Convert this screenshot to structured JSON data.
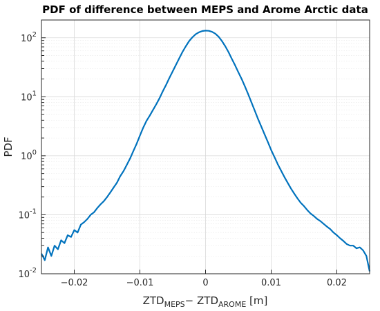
{
  "chart_data": {
    "type": "line",
    "title": "PDF of difference between MEPS and Arome Arctic data",
    "ylabel": "PDF",
    "xlabel": {
      "prefix": "ZTD",
      "sub1": "MEPS",
      "minus": "− ZTD",
      "sub2": "AROME",
      "unit": " [m]"
    },
    "xlim": [
      -0.025,
      0.025
    ],
    "ylim": [
      0.01,
      200
    ],
    "yscale": "log",
    "grid": true,
    "minor_grid": true,
    "x_ticks": [
      {
        "value": -0.02,
        "label": "−0.02"
      },
      {
        "value": -0.01,
        "label": "−0.01"
      },
      {
        "value": 0,
        "label": "0"
      },
      {
        "value": 0.01,
        "label": "0.01"
      },
      {
        "value": 0.02,
        "label": "0.02"
      }
    ],
    "y_ticks": [
      {
        "value": 0.01,
        "base": "10",
        "exp": "-2"
      },
      {
        "value": 0.1,
        "base": "10",
        "exp": "-1"
      },
      {
        "value": 1,
        "base": "10",
        "exp": "0"
      },
      {
        "value": 10,
        "base": "10",
        "exp": "1"
      },
      {
        "value": 100,
        "base": "10",
        "exp": "2"
      }
    ],
    "series": [
      {
        "color": "#0072bd",
        "x": [
          -0.025,
          -0.0245,
          -0.024,
          -0.0235,
          -0.023,
          -0.0225,
          -0.022,
          -0.0215,
          -0.021,
          -0.0205,
          -0.02,
          -0.0195,
          -0.019,
          -0.0185,
          -0.018,
          -0.0175,
          -0.017,
          -0.0165,
          -0.016,
          -0.0155,
          -0.015,
          -0.0145,
          -0.014,
          -0.0135,
          -0.013,
          -0.0125,
          -0.012,
          -0.0115,
          -0.011,
          -0.0105,
          -0.01,
          -0.0095,
          -0.009,
          -0.0085,
          -0.008,
          -0.0075,
          -0.007,
          -0.0065,
          -0.006,
          -0.0055,
          -0.005,
          -0.0045,
          -0.004,
          -0.0035,
          -0.003,
          -0.0025,
          -0.002,
          -0.0015,
          -0.001,
          -0.0005,
          0.0,
          0.0005,
          0.001,
          0.0015,
          0.002,
          0.0025,
          0.003,
          0.0035,
          0.004,
          0.0045,
          0.005,
          0.0055,
          0.006,
          0.0065,
          0.007,
          0.0075,
          0.008,
          0.0085,
          0.009,
          0.0095,
          0.01,
          0.0105,
          0.011,
          0.0115,
          0.012,
          0.0125,
          0.013,
          0.0135,
          0.014,
          0.0145,
          0.015,
          0.0155,
          0.016,
          0.0165,
          0.017,
          0.0175,
          0.018,
          0.0185,
          0.019,
          0.0195,
          0.02,
          0.0205,
          0.021,
          0.0215,
          0.022,
          0.0225,
          0.023,
          0.0235,
          0.024,
          0.0245,
          0.025
        ],
        "y": [
          0.022,
          0.017,
          0.028,
          0.02,
          0.03,
          0.026,
          0.037,
          0.033,
          0.045,
          0.042,
          0.055,
          0.05,
          0.068,
          0.075,
          0.085,
          0.1,
          0.11,
          0.13,
          0.15,
          0.17,
          0.2,
          0.24,
          0.29,
          0.35,
          0.45,
          0.55,
          0.7,
          0.9,
          1.2,
          1.6,
          2.2,
          3.0,
          3.9,
          4.8,
          6.0,
          7.5,
          9.5,
          12.5,
          16.0,
          21.0,
          27.0,
          35.0,
          45.0,
          58.0,
          72.0,
          88.0,
          102.0,
          115.0,
          124.0,
          130.0,
          132.0,
          131.0,
          126.0,
          117.0,
          104.0,
          88.0,
          72.0,
          57.0,
          44.0,
          34.0,
          26.0,
          20.0,
          15.0,
          11.0,
          8.0,
          5.8,
          4.2,
          3.1,
          2.3,
          1.7,
          1.25,
          0.95,
          0.72,
          0.56,
          0.44,
          0.35,
          0.28,
          0.23,
          0.19,
          0.16,
          0.14,
          0.12,
          0.105,
          0.095,
          0.085,
          0.078,
          0.07,
          0.063,
          0.057,
          0.05,
          0.045,
          0.04,
          0.036,
          0.032,
          0.03,
          0.03,
          0.027,
          0.028,
          0.025,
          0.02,
          0.011
        ]
      }
    ]
  }
}
